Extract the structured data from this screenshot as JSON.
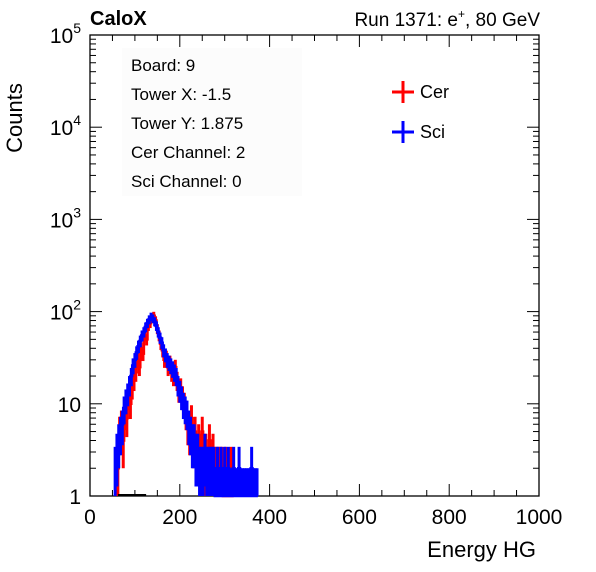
{
  "chart_data": {
    "type": "histogram",
    "title_left": "CaloX",
    "title_right_prefix": "Run 1371: e",
    "title_right_sup": "+",
    "title_right_suffix": ", 80 GeV",
    "xlabel": "Energy HG",
    "ylabel": "Counts",
    "xlim": [
      0,
      1000
    ],
    "ylim": [
      1,
      100000
    ],
    "yscale": "log",
    "x_ticks": [
      "0",
      "200",
      "400",
      "600",
      "800",
      "1000"
    ],
    "y_ticks": [
      {
        "base": "1",
        "exp": ""
      },
      {
        "base": "10",
        "exp": ""
      },
      {
        "base": "10",
        "exp": "2"
      },
      {
        "base": "10",
        "exp": "3"
      },
      {
        "base": "10",
        "exp": "4"
      },
      {
        "base": "10",
        "exp": "5"
      }
    ],
    "info_lines": [
      "Board: 9",
      "Tower X: -1.5",
      "Tower Y: 1.875",
      "Cer Channel: 2",
      "Sci Channel: 0"
    ],
    "legend_position": "top-right",
    "series": [
      {
        "name": "Cer",
        "color": "#ff0000",
        "points": [
          [
            62,
            2
          ],
          [
            66,
            5
          ],
          [
            70,
            6
          ],
          [
            74,
            4
          ],
          [
            78,
            8
          ],
          [
            82,
            7
          ],
          [
            86,
            12
          ],
          [
            90,
            10
          ],
          [
            94,
            15
          ],
          [
            98,
            18
          ],
          [
            102,
            22
          ],
          [
            106,
            30
          ],
          [
            110,
            25
          ],
          [
            114,
            40
          ],
          [
            118,
            35
          ],
          [
            122,
            55
          ],
          [
            126,
            50
          ],
          [
            130,
            70
          ],
          [
            134,
            75
          ],
          [
            138,
            85
          ],
          [
            142,
            90
          ],
          [
            146,
            80
          ],
          [
            150,
            65
          ],
          [
            154,
            55
          ],
          [
            158,
            45
          ],
          [
            162,
            38
          ],
          [
            166,
            30
          ],
          [
            170,
            32
          ],
          [
            174,
            25
          ],
          [
            178,
            28
          ],
          [
            182,
            22
          ],
          [
            186,
            20
          ],
          [
            190,
            25
          ],
          [
            194,
            18
          ],
          [
            198,
            14
          ],
          [
            202,
            15
          ],
          [
            206,
            12
          ],
          [
            210,
            10
          ],
          [
            214,
            8
          ],
          [
            218,
            6
          ],
          [
            222,
            5
          ],
          [
            226,
            7
          ],
          [
            230,
            4
          ],
          [
            234,
            5
          ],
          [
            238,
            3
          ],
          [
            242,
            4
          ],
          [
            246,
            3
          ],
          [
            250,
            5
          ],
          [
            254,
            2
          ],
          [
            258,
            3
          ],
          [
            262,
            2
          ],
          [
            266,
            4
          ],
          [
            270,
            2
          ],
          [
            274,
            3
          ],
          [
            278,
            2
          ],
          [
            282,
            2
          ],
          [
            286,
            2
          ],
          [
            290,
            2
          ],
          [
            294,
            2
          ],
          [
            298,
            1
          ],
          [
            302,
            2
          ],
          [
            306,
            1
          ],
          [
            310,
            1
          ],
          [
            314,
            2
          ],
          [
            318,
            1
          ]
        ]
      },
      {
        "name": "Sci",
        "color": "#0000ff",
        "points": [
          [
            56,
            2
          ],
          [
            60,
            3
          ],
          [
            64,
            4
          ],
          [
            68,
            5
          ],
          [
            72,
            6
          ],
          [
            76,
            9
          ],
          [
            80,
            11
          ],
          [
            84,
            13
          ],
          [
            88,
            16
          ],
          [
            92,
            20
          ],
          [
            96,
            26
          ],
          [
            100,
            30
          ],
          [
            104,
            36
          ],
          [
            108,
            42
          ],
          [
            112,
            48
          ],
          [
            116,
            55
          ],
          [
            120,
            60
          ],
          [
            124,
            68
          ],
          [
            128,
            75
          ],
          [
            132,
            82
          ],
          [
            136,
            88
          ],
          [
            140,
            84
          ],
          [
            144,
            78
          ],
          [
            148,
            70
          ],
          [
            152,
            60
          ],
          [
            156,
            52
          ],
          [
            160,
            46
          ],
          [
            164,
            38
          ],
          [
            168,
            34
          ],
          [
            172,
            30
          ],
          [
            176,
            28
          ],
          [
            180,
            26
          ],
          [
            184,
            24
          ],
          [
            188,
            22
          ],
          [
            192,
            20
          ],
          [
            196,
            16
          ],
          [
            200,
            14
          ],
          [
            204,
            12
          ],
          [
            208,
            10
          ],
          [
            212,
            9
          ],
          [
            216,
            8
          ],
          [
            220,
            6
          ],
          [
            224,
            5
          ],
          [
            228,
            4
          ],
          [
            232,
            4
          ],
          [
            236,
            3
          ],
          [
            240,
            3
          ],
          [
            244,
            2
          ],
          [
            248,
            2
          ],
          [
            252,
            2
          ],
          [
            256,
            3
          ],
          [
            260,
            2
          ],
          [
            264,
            2
          ],
          [
            268,
            2
          ],
          [
            272,
            2
          ],
          [
            276,
            2
          ],
          [
            280,
            1
          ],
          [
            284,
            2
          ],
          [
            288,
            1
          ],
          [
            292,
            2
          ],
          [
            296,
            1
          ],
          [
            300,
            2
          ],
          [
            304,
            1
          ],
          [
            308,
            2
          ],
          [
            312,
            1
          ],
          [
            316,
            1
          ],
          [
            320,
            2
          ],
          [
            324,
            1
          ],
          [
            328,
            1
          ],
          [
            332,
            2
          ],
          [
            336,
            1
          ],
          [
            340,
            1
          ],
          [
            344,
            1
          ],
          [
            348,
            1
          ],
          [
            352,
            1
          ],
          [
            356,
            1
          ],
          [
            360,
            2
          ],
          [
            364,
            1
          ],
          [
            368,
            1
          ],
          [
            372,
            1
          ]
        ]
      }
    ]
  }
}
